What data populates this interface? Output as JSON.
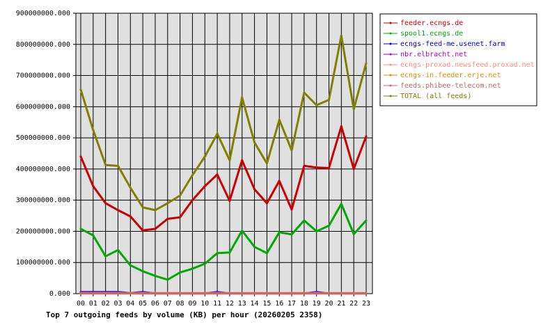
{
  "chart_data": {
    "type": "line",
    "caption": "Top 7 outgoing feeds by volume (KB) per hour (20260205 2358)",
    "categories": [
      "00",
      "01",
      "02",
      "03",
      "04",
      "05",
      "06",
      "07",
      "08",
      "09",
      "10",
      "11",
      "12",
      "13",
      "14",
      "15",
      "16",
      "17",
      "18",
      "19",
      "20",
      "21",
      "22",
      "23"
    ],
    "ylim": [
      0,
      900000000
    ],
    "yticks": [
      0,
      100000000,
      200000000,
      300000000,
      400000000,
      500000000,
      600000000,
      700000000,
      800000000,
      900000000
    ],
    "ytick_labels": [
      "0.000",
      "100000000.000",
      "200000000.000",
      "300000000.000",
      "400000000.000",
      "500000000.000",
      "600000000.000",
      "700000000.000",
      "800000000.000",
      "900000000.000"
    ],
    "grid": true,
    "legend_position": "right",
    "series": [
      {
        "name": "feeder.ecngs.de",
        "color": "#cc0000",
        "values": [
          440000000,
          345000000,
          290000000,
          268000000,
          248000000,
          203000000,
          208000000,
          240000000,
          245000000,
          300000000,
          345000000,
          382000000,
          298000000,
          428000000,
          335000000,
          290000000,
          362000000,
          270000000,
          410000000,
          405000000,
          403000000,
          537000000,
          400000000,
          505000000
        ]
      },
      {
        "name": "spool1.ecngs.de",
        "color": "#00aa00",
        "values": [
          208000000,
          187000000,
          120000000,
          140000000,
          91000000,
          72000000,
          57000000,
          45000000,
          68000000,
          80000000,
          96000000,
          130000000,
          132000000,
          202000000,
          150000000,
          130000000,
          197000000,
          190000000,
          235000000,
          200000000,
          218000000,
          288000000,
          191000000,
          235000000
        ]
      },
      {
        "name": "ecngs-feed-me.usenet.farm",
        "color": "#0000cc",
        "values": [
          5000000,
          5000000,
          5000000,
          5000000,
          2000000,
          5000000,
          1000000,
          1000000,
          1000000,
          1000000,
          1000000,
          5000000,
          1000000,
          1000000,
          1000000,
          1000000,
          1000000,
          1000000,
          1000000,
          5000000,
          1000000,
          1000000,
          1000000,
          1000000
        ]
      },
      {
        "name": "nbr.elbracht.net",
        "color": "#aa00cc",
        "values": [
          3000000,
          3000000,
          3000000,
          3000000,
          1000000,
          3000000,
          1000000,
          1000000,
          1000000,
          1000000,
          1000000,
          3000000,
          1000000,
          1000000,
          1000000,
          1000000,
          1000000,
          1000000,
          1000000,
          3000000,
          1000000,
          1000000,
          1000000,
          1000000
        ]
      },
      {
        "name": "ecngs-proxad.newsfeed.proxad.net",
        "color": "#ff8888",
        "values": [
          2000000,
          2000000,
          2000000,
          2000000,
          2000000,
          2000000,
          2000000,
          2000000,
          2000000,
          2000000,
          2000000,
          2000000,
          2000000,
          2000000,
          2000000,
          2000000,
          2000000,
          2000000,
          2000000,
          2000000,
          2000000,
          2000000,
          2000000,
          2000000
        ]
      },
      {
        "name": "ecngs-in.feeder.erje.net",
        "color": "#ee8800",
        "values": [
          1000000,
          1000000,
          1000000,
          1000000,
          1000000,
          1000000,
          1000000,
          1000000,
          1000000,
          1000000,
          1000000,
          1000000,
          1000000,
          1000000,
          1000000,
          1000000,
          1000000,
          1000000,
          1000000,
          1000000,
          1000000,
          1000000,
          1000000,
          1000000
        ]
      },
      {
        "name": "feeds.phibee-telecom.net",
        "color": "#cc6666",
        "values": [
          1000000,
          1000000,
          1000000,
          1000000,
          1000000,
          1000000,
          1000000,
          1000000,
          1000000,
          1000000,
          1000000,
          1000000,
          1000000,
          1000000,
          1000000,
          1000000,
          1000000,
          1000000,
          1000000,
          1000000,
          1000000,
          1000000,
          1000000,
          1000000
        ]
      },
      {
        "name": "TOTAL (all feeds)",
        "color": "#808000",
        "values": [
          655000000,
          525000000,
          413000000,
          410000000,
          340000000,
          277000000,
          268000000,
          290000000,
          315000000,
          380000000,
          440000000,
          513000000,
          428000000,
          630000000,
          485000000,
          418000000,
          558000000,
          460000000,
          645000000,
          605000000,
          622000000,
          828000000,
          592000000,
          740000000
        ]
      }
    ]
  }
}
